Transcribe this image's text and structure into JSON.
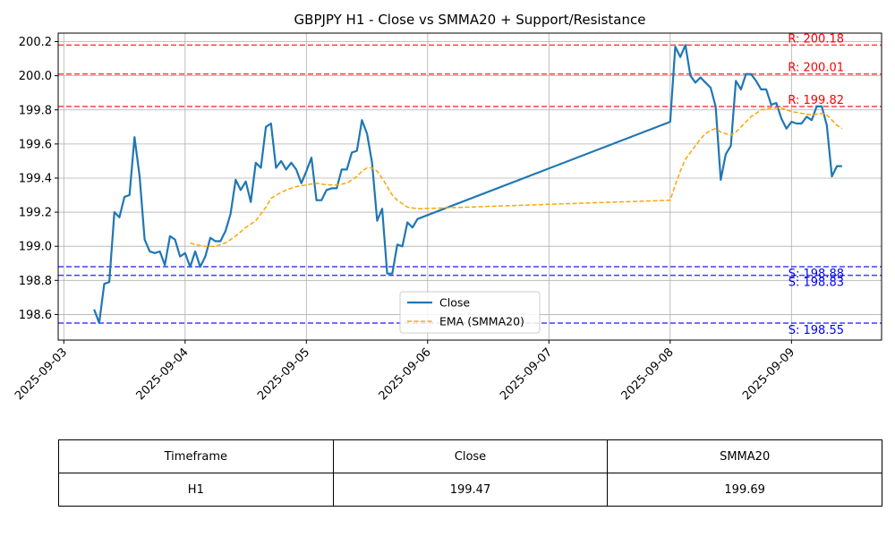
{
  "chart_data": {
    "type": "line",
    "title": "GBPJPY H1 - Close vs SMMA20 + Support/Resistance",
    "xlabel": "",
    "ylabel": "",
    "xlim": [
      "2025-09-02T22:53",
      "2025-09-09T17:50"
    ],
    "ylim": [
      198.45,
      200.25
    ],
    "yticks": [
      198.6,
      198.8,
      199.0,
      199.2,
      199.4,
      199.6,
      199.8,
      200.0,
      200.2
    ],
    "ytick_labels": [
      "198.6",
      "198.8",
      "199.0",
      "199.2",
      "199.4",
      "199.6",
      "199.8",
      "200.0",
      "200.2"
    ],
    "xticks": [
      "2025-09-03T00:00",
      "2025-09-04T00:00",
      "2025-09-05T00:00",
      "2025-09-06T00:00",
      "2025-09-07T00:00",
      "2025-09-08T00:00",
      "2025-09-09T00:00"
    ],
    "xtick_labels": [
      "2025-09-03",
      "2025-09-04",
      "2025-09-05",
      "2025-09-06",
      "2025-09-07",
      "2025-09-08",
      "2025-09-09"
    ],
    "grid": true,
    "legend_position": "lower-center",
    "series": [
      {
        "name": "Close",
        "color": "#1f77b4",
        "style": "solid",
        "points": [
          [
            "2025-09-03T06:00",
            198.63
          ],
          [
            "2025-09-03T07:00",
            198.55
          ],
          [
            "2025-09-03T08:00",
            198.78
          ],
          [
            "2025-09-03T09:00",
            198.79
          ],
          [
            "2025-09-03T10:00",
            199.2
          ],
          [
            "2025-09-03T11:00",
            199.17
          ],
          [
            "2025-09-03T12:00",
            199.29
          ],
          [
            "2025-09-03T13:00",
            199.3
          ],
          [
            "2025-09-03T14:00",
            199.64
          ],
          [
            "2025-09-03T15:00",
            199.41
          ],
          [
            "2025-09-03T16:00",
            199.04
          ],
          [
            "2025-09-03T17:00",
            198.97
          ],
          [
            "2025-09-03T18:00",
            198.96
          ],
          [
            "2025-09-03T19:00",
            198.97
          ],
          [
            "2025-09-03T20:00",
            198.89
          ],
          [
            "2025-09-03T21:00",
            199.06
          ],
          [
            "2025-09-03T22:00",
            199.04
          ],
          [
            "2025-09-03T23:00",
            198.94
          ],
          [
            "2025-09-04T00:00",
            198.96
          ],
          [
            "2025-09-04T01:00",
            198.88
          ],
          [
            "2025-09-04T02:00",
            198.97
          ],
          [
            "2025-09-04T03:00",
            198.88
          ],
          [
            "2025-09-04T04:00",
            198.94
          ],
          [
            "2025-09-04T05:00",
            199.05
          ],
          [
            "2025-09-04T06:00",
            199.03
          ],
          [
            "2025-09-04T07:00",
            199.03
          ],
          [
            "2025-09-04T08:00",
            199.09
          ],
          [
            "2025-09-04T09:00",
            199.19
          ],
          [
            "2025-09-04T10:00",
            199.39
          ],
          [
            "2025-09-04T11:00",
            199.33
          ],
          [
            "2025-09-04T12:00",
            199.38
          ],
          [
            "2025-09-04T13:00",
            199.26
          ],
          [
            "2025-09-04T14:00",
            199.49
          ],
          [
            "2025-09-04T15:00",
            199.46
          ],
          [
            "2025-09-04T16:00",
            199.7
          ],
          [
            "2025-09-04T17:00",
            199.72
          ],
          [
            "2025-09-04T18:00",
            199.46
          ],
          [
            "2025-09-04T19:00",
            199.5
          ],
          [
            "2025-09-04T20:00",
            199.45
          ],
          [
            "2025-09-04T21:00",
            199.49
          ],
          [
            "2025-09-04T22:00",
            199.45
          ],
          [
            "2025-09-04T23:00",
            199.37
          ],
          [
            "2025-09-05T00:00",
            199.44
          ],
          [
            "2025-09-05T01:00",
            199.52
          ],
          [
            "2025-09-05T02:00",
            199.27
          ],
          [
            "2025-09-05T03:00",
            199.27
          ],
          [
            "2025-09-05T04:00",
            199.33
          ],
          [
            "2025-09-05T05:00",
            199.34
          ],
          [
            "2025-09-05T06:00",
            199.34
          ],
          [
            "2025-09-05T07:00",
            199.45
          ],
          [
            "2025-09-05T08:00",
            199.45
          ],
          [
            "2025-09-05T09:00",
            199.55
          ],
          [
            "2025-09-05T10:00",
            199.56
          ],
          [
            "2025-09-05T11:00",
            199.74
          ],
          [
            "2025-09-05T12:00",
            199.66
          ],
          [
            "2025-09-05T13:00",
            199.49
          ],
          [
            "2025-09-05T14:00",
            199.15
          ],
          [
            "2025-09-05T15:00",
            199.22
          ],
          [
            "2025-09-05T16:00",
            198.84
          ],
          [
            "2025-09-05T17:00",
            198.84
          ],
          [
            "2025-09-05T18:00",
            199.01
          ],
          [
            "2025-09-05T19:00",
            199.0
          ],
          [
            "2025-09-05T20:00",
            199.14
          ],
          [
            "2025-09-05T21:00",
            199.11
          ],
          [
            "2025-09-05T22:00",
            199.16
          ],
          [
            "2025-09-08T00:00",
            199.73
          ],
          [
            "2025-09-08T01:00",
            200.17
          ],
          [
            "2025-09-08T02:00",
            200.11
          ],
          [
            "2025-09-08T03:00",
            200.18
          ],
          [
            "2025-09-08T04:00",
            200.0
          ],
          [
            "2025-09-08T05:00",
            199.96
          ],
          [
            "2025-09-08T06:00",
            199.99
          ],
          [
            "2025-09-08T07:00",
            199.96
          ],
          [
            "2025-09-08T08:00",
            199.93
          ],
          [
            "2025-09-08T09:00",
            199.82
          ],
          [
            "2025-09-08T10:00",
            199.39
          ],
          [
            "2025-09-08T11:00",
            199.54
          ],
          [
            "2025-09-08T12:00",
            199.59
          ],
          [
            "2025-09-08T13:00",
            199.97
          ],
          [
            "2025-09-08T14:00",
            199.92
          ],
          [
            "2025-09-08T15:00",
            200.01
          ],
          [
            "2025-09-08T16:00",
            200.01
          ],
          [
            "2025-09-08T17:00",
            199.97
          ],
          [
            "2025-09-08T18:00",
            199.92
          ],
          [
            "2025-09-08T19:00",
            199.92
          ],
          [
            "2025-09-08T20:00",
            199.83
          ],
          [
            "2025-09-08T21:00",
            199.84
          ],
          [
            "2025-09-08T22:00",
            199.75
          ],
          [
            "2025-09-08T23:00",
            199.69
          ],
          [
            "2025-09-09T00:00",
            199.73
          ],
          [
            "2025-09-09T01:00",
            199.72
          ],
          [
            "2025-09-09T02:00",
            199.72
          ],
          [
            "2025-09-09T03:00",
            199.76
          ],
          [
            "2025-09-09T04:00",
            199.74
          ],
          [
            "2025-09-09T05:00",
            199.82
          ],
          [
            "2025-09-09T06:00",
            199.82
          ],
          [
            "2025-09-09T07:00",
            199.71
          ],
          [
            "2025-09-09T08:00",
            199.41
          ],
          [
            "2025-09-09T09:00",
            199.47
          ],
          [
            "2025-09-09T10:00",
            199.47
          ]
        ]
      },
      {
        "name": "EMA (SMMA20)",
        "color": "#ffa500",
        "style": "dashed",
        "points": [
          [
            "2025-09-04T01:00",
            199.02
          ],
          [
            "2025-09-04T02:00",
            199.01
          ],
          [
            "2025-09-04T04:00",
            199.0
          ],
          [
            "2025-09-04T06:00",
            199.0
          ],
          [
            "2025-09-04T08:00",
            199.02
          ],
          [
            "2025-09-04T10:00",
            199.06
          ],
          [
            "2025-09-04T12:00",
            199.11
          ],
          [
            "2025-09-04T14:00",
            199.15
          ],
          [
            "2025-09-04T15:00",
            199.19
          ],
          [
            "2025-09-04T16:00",
            199.23
          ],
          [
            "2025-09-04T17:00",
            199.28
          ],
          [
            "2025-09-04T18:00",
            199.3
          ],
          [
            "2025-09-04T20:00",
            199.33
          ],
          [
            "2025-09-04T22:00",
            199.35
          ],
          [
            "2025-09-05T00:00",
            199.36
          ],
          [
            "2025-09-05T02:00",
            199.37
          ],
          [
            "2025-09-05T04:00",
            199.36
          ],
          [
            "2025-09-05T06:00",
            199.36
          ],
          [
            "2025-09-05T08:00",
            199.37
          ],
          [
            "2025-09-05T10:00",
            199.41
          ],
          [
            "2025-09-05T11:00",
            199.44
          ],
          [
            "2025-09-05T12:00",
            199.46
          ],
          [
            "2025-09-05T13:00",
            199.46
          ],
          [
            "2025-09-05T14:00",
            199.44
          ],
          [
            "2025-09-05T15:00",
            199.4
          ],
          [
            "2025-09-05T16:00",
            199.35
          ],
          [
            "2025-09-05T17:00",
            199.3
          ],
          [
            "2025-09-05T18:00",
            199.27
          ],
          [
            "2025-09-05T19:00",
            199.25
          ],
          [
            "2025-09-05T20:00",
            199.23
          ],
          [
            "2025-09-05T22:00",
            199.22
          ],
          [
            "2025-09-08T00:00",
            199.27
          ],
          [
            "2025-09-08T01:00",
            199.36
          ],
          [
            "2025-09-08T02:00",
            199.44
          ],
          [
            "2025-09-08T03:00",
            199.51
          ],
          [
            "2025-09-08T04:00",
            199.55
          ],
          [
            "2025-09-08T05:00",
            199.59
          ],
          [
            "2025-09-08T06:00",
            199.63
          ],
          [
            "2025-09-08T07:00",
            199.66
          ],
          [
            "2025-09-08T08:00",
            199.68
          ],
          [
            "2025-09-08T09:00",
            199.69
          ],
          [
            "2025-09-08T10:00",
            199.67
          ],
          [
            "2025-09-08T11:00",
            199.66
          ],
          [
            "2025-09-08T12:00",
            199.65
          ],
          [
            "2025-09-08T13:00",
            199.67
          ],
          [
            "2025-09-08T14:00",
            199.7
          ],
          [
            "2025-09-08T15:00",
            199.73
          ],
          [
            "2025-09-08T16:00",
            199.76
          ],
          [
            "2025-09-08T17:00",
            199.78
          ],
          [
            "2025-09-08T18:00",
            199.8
          ],
          [
            "2025-09-08T20:00",
            199.81
          ],
          [
            "2025-09-08T22:00",
            199.81
          ],
          [
            "2025-09-09T00:00",
            199.79
          ],
          [
            "2025-09-09T02:00",
            199.78
          ],
          [
            "2025-09-09T04:00",
            199.77
          ],
          [
            "2025-09-09T06:00",
            199.78
          ],
          [
            "2025-09-09T07:00",
            199.77
          ],
          [
            "2025-09-09T08:00",
            199.74
          ],
          [
            "2025-09-09T09:00",
            199.71
          ],
          [
            "2025-09-09T10:00",
            199.69
          ]
        ]
      }
    ],
    "resistance_levels": [
      200.18,
      200.01,
      199.82
    ],
    "support_levels": [
      198.88,
      198.83,
      198.55
    ],
    "resistance_color": "#ff0000",
    "support_color": "#0000ff",
    "resistance_label_prefix": "R: ",
    "support_label_prefix": "S: "
  },
  "table": {
    "headers": [
      "Timeframe",
      "Close",
      "SMMA20"
    ],
    "row": [
      "H1",
      "199.47",
      "199.69"
    ]
  }
}
